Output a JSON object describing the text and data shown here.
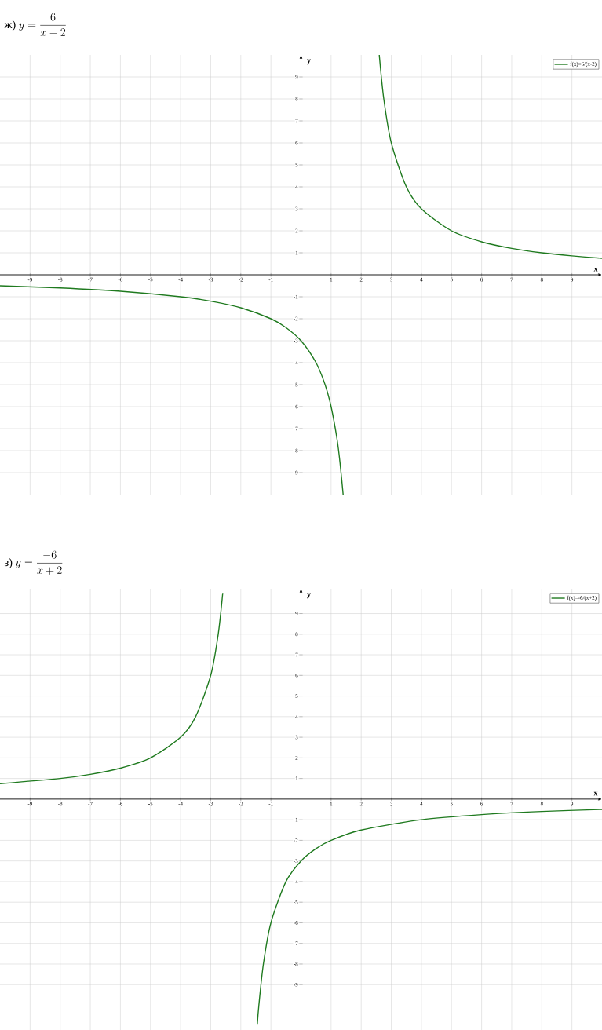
{
  "chart_data": [
    {
      "type": "line",
      "title": "\\mbox{ж)}\\ y=\\frac{6}{x-2}",
      "xlabel": "x",
      "ylabel": "y",
      "series": [
        {
          "name": "f(x)=6/(x-2)",
          "color": "#1f7a1f",
          "x": [
            -10,
            -8,
            -6,
            -4,
            -3,
            -2,
            -1,
            -0.5,
            0,
            0.5,
            0.8,
            1,
            1.2,
            1.3,
            1.4,
            2,
            2.6,
            2.75,
            3,
            3.5,
            4,
            5,
            6,
            7,
            8,
            9,
            10
          ],
          "values": [
            -0.5,
            -0.6,
            -0.75,
            -1,
            -1.2,
            -1.5,
            -2,
            -2.4,
            -3,
            -4,
            -5,
            -6,
            -7.5,
            -8.6,
            -10,
            null,
            10,
            8,
            6,
            4,
            3,
            2,
            1.5,
            1.2,
            1,
            0.86,
            0.75
          ]
        }
      ],
      "xlim": [
        -10,
        10
      ],
      "ylim": [
        -10,
        10
      ],
      "xticks": [
        -9,
        -8,
        -7,
        -6,
        -5,
        -4,
        -3,
        -2,
        -1,
        1,
        2,
        3,
        4,
        5,
        6,
        7,
        8,
        9
      ],
      "yticks": [
        -9,
        -8,
        -7,
        -6,
        -5,
        -4,
        -3,
        -2,
        -1,
        1,
        2,
        3,
        4,
        5,
        6,
        7,
        8,
        9
      ],
      "grid": true,
      "legend": "top right"
    },
    {
      "type": "line",
      "title": "\\mbox{з)}\\ y=\\frac{-6}{x+2}",
      "xlabel": "x",
      "ylabel": "y",
      "series": [
        {
          "name": "f(x)=-6/(x+2)",
          "color": "#1f7a1f",
          "x": [
            -10,
            -8,
            -7,
            -6,
            -5,
            -4,
            -3.5,
            -3,
            -2.75,
            -2.6,
            -2,
            -1.45,
            -1.4,
            -1.25,
            -1,
            -0.5,
            0,
            0.5,
            1,
            2,
            4,
            6,
            8,
            10
          ],
          "values": [
            0.75,
            1,
            1.2,
            1.5,
            2,
            3,
            4,
            6,
            8,
            10,
            null,
            -10.9,
            -10,
            -8,
            -6,
            -4,
            -3,
            -2.4,
            -2,
            -1.5,
            -1,
            -0.75,
            -0.6,
            -0.5
          ]
        }
      ],
      "xlim": [
        -10,
        10
      ],
      "ylim": [
        -11.2,
        10.2
      ],
      "xticks": [
        -9,
        -8,
        -7,
        -6,
        -5,
        -4,
        -3,
        -2,
        -1,
        1,
        2,
        3,
        4,
        5,
        6,
        7,
        8,
        9
      ],
      "yticks": [
        -9,
        -8,
        -7,
        -6,
        -5,
        -4,
        -3,
        -2,
        -1,
        1,
        2,
        3,
        4,
        5,
        6,
        7,
        8,
        9
      ],
      "grid": true,
      "legend": "top right"
    }
  ]
}
